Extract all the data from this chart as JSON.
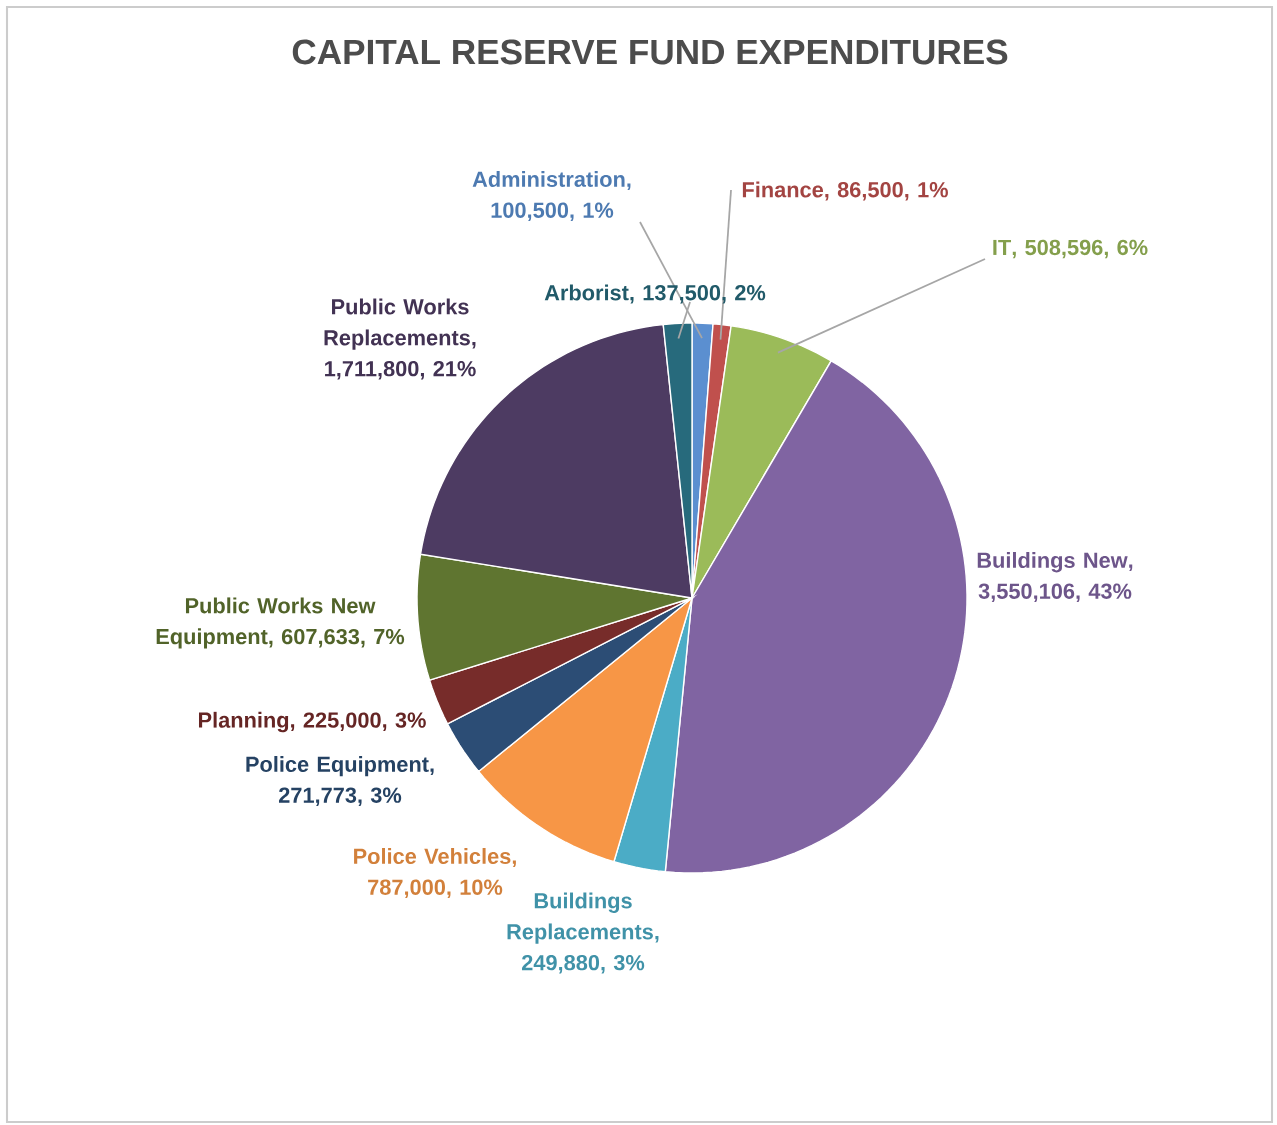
{
  "chart_data": {
    "type": "pie",
    "title": "CAPITAL RESERVE FUND EXPENDITURES",
    "categories": [
      "Administration",
      "Finance",
      "IT",
      "Buildings New",
      "Buildings Replacements",
      "Police Vehicles",
      "Police Equipment",
      "Planning",
      "Public Works New Equipment",
      "Public Works Replacements",
      "Arborist"
    ],
    "values": [
      100500,
      86500,
      508596,
      3550106,
      249880,
      787000,
      271773,
      225000,
      607633,
      1711800,
      137500
    ],
    "value_labels": [
      ", 100,500, 1%",
      ", 86,500, 1%",
      ", 508,596, 6%",
      ", 3,550,106, 43%",
      ", 249,880, 3%",
      ", 787,000, 10%",
      ", 271,773, 3%",
      ", 225,000, 3%",
      ", 607,633, 7%",
      ", 1,711,800, 21%",
      ", 137,500, 2%"
    ],
    "colors": [
      "#5b8fd0",
      "#c0504d",
      "#9bbb59",
      "#8064a2",
      "#4bacc6",
      "#f79646",
      "#2c4d75",
      "#772c2a",
      "#5f7530",
      "#4d3b62",
      "#276a7c"
    ]
  }
}
